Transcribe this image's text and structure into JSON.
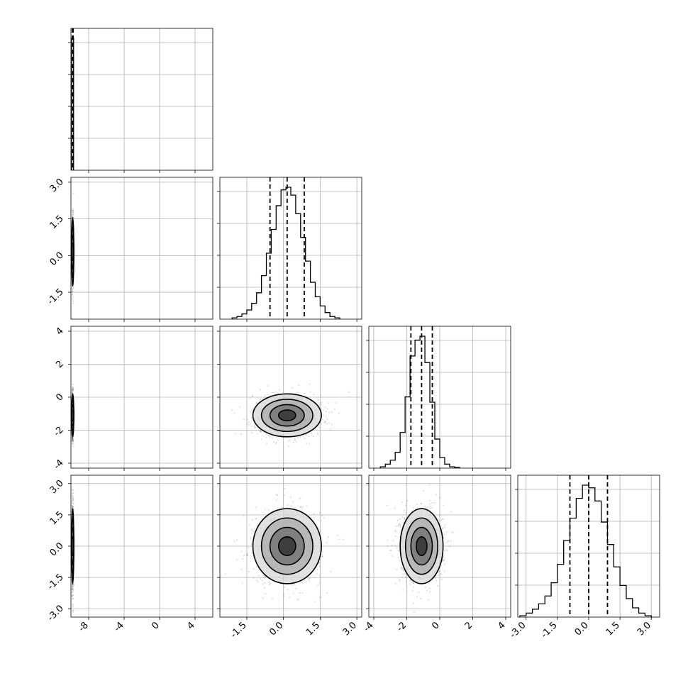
{
  "chart_data": {
    "type": "corner",
    "n_params": 4,
    "grid": true,
    "axis_ranges": [
      [
        -10,
        6
      ],
      [
        -2.6,
        3.2
      ],
      [
        -4.3,
        4.3
      ],
      [
        -3.4,
        3.4
      ]
    ],
    "tick_labels": {
      "p0": [
        "-8",
        "-4",
        "0",
        "4"
      ],
      "p1": [
        "-1.5",
        "0.0",
        "1.5",
        "3.0"
      ],
      "p2": [
        "-4",
        "-2",
        "0",
        "2",
        "4"
      ],
      "p3": [
        "-3.0",
        "-1.5",
        "0.0",
        "1.5",
        "3.0"
      ]
    },
    "parameters": [
      {
        "mean": -9.8,
        "sd": 0.05,
        "quantiles": [
          -9.85,
          -9.8,
          -9.75
        ]
      },
      {
        "mean": 0.15,
        "sd": 0.7,
        "quantiles": [
          -0.55,
          0.15,
          0.85
        ]
      },
      {
        "mean": -1.1,
        "sd": 0.65,
        "quantiles": [
          -1.75,
          -1.1,
          -0.45
        ]
      },
      {
        "mean": 0.0,
        "sd": 0.9,
        "quantiles": [
          -0.9,
          0.0,
          0.9
        ]
      }
    ],
    "histograms": [
      {
        "param": 0,
        "bin_edges": [
          -9.9,
          -9.7
        ],
        "counts": [
          1.0
        ]
      },
      {
        "param": 1,
        "bin_edges": [
          -2.1,
          -1.9,
          -1.7,
          -1.5,
          -1.3,
          -1.1,
          -0.9,
          -0.7,
          -0.5,
          -0.3,
          -0.1,
          0.1,
          0.3,
          0.5,
          0.7,
          0.9,
          1.1,
          1.3,
          1.5,
          1.7,
          1.9,
          2.1,
          2.3
        ],
        "counts": [
          0.01,
          0.02,
          0.04,
          0.07,
          0.12,
          0.2,
          0.33,
          0.5,
          0.68,
          0.86,
          0.98,
          1.0,
          0.94,
          0.8,
          0.62,
          0.44,
          0.28,
          0.17,
          0.1,
          0.05,
          0.02,
          0.01
        ]
      },
      {
        "param": 2,
        "bin_edges": [
          -3.6,
          -3.3,
          -3.0,
          -2.7,
          -2.4,
          -2.1,
          -1.8,
          -1.5,
          -1.2,
          -0.9,
          -0.6,
          -0.3,
          0.0,
          0.3,
          0.6,
          0.9,
          1.2
        ],
        "counts": [
          0.01,
          0.03,
          0.06,
          0.12,
          0.27,
          0.54,
          0.85,
          0.97,
          1.0,
          0.8,
          0.5,
          0.22,
          0.08,
          0.03,
          0.01,
          0.005
        ]
      },
      {
        "param": 3,
        "bin_edges": [
          -3.3,
          -3.0,
          -2.7,
          -2.4,
          -2.1,
          -1.8,
          -1.5,
          -1.2,
          -0.9,
          -0.6,
          -0.3,
          0.0,
          0.3,
          0.6,
          0.9,
          1.2,
          1.5,
          1.8,
          2.1,
          2.4,
          2.7,
          3.0
        ],
        "counts": [
          0.01,
          0.03,
          0.06,
          0.1,
          0.16,
          0.26,
          0.4,
          0.58,
          0.75,
          0.9,
          1.0,
          0.98,
          0.88,
          0.72,
          0.55,
          0.38,
          0.24,
          0.14,
          0.07,
          0.03,
          0.01
        ]
      }
    ],
    "contour_levels_sigma": [
      0.5,
      1.0,
      1.5,
      2.0
    ]
  }
}
